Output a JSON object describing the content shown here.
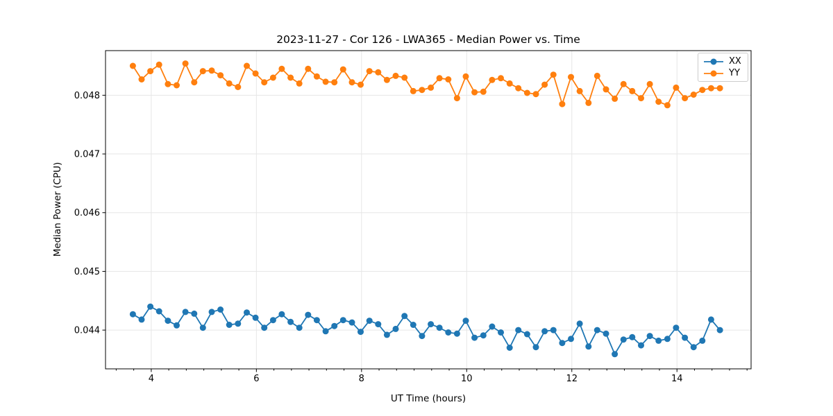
{
  "chart_data": {
    "type": "line",
    "title": "2023-11-27 - Cor 126 - LWA365 - Median Power vs. Time",
    "xlabel": "UT Time (hours)",
    "ylabel": "Median Power (CPU)",
    "xlim": [
      3.13,
      15.41
    ],
    "ylim": [
      0.04334,
      0.04876
    ],
    "xticks": [
      4,
      6,
      8,
      10,
      12,
      14
    ],
    "xtick_labels": [
      "4",
      "6",
      "8",
      "10",
      "12",
      "14"
    ],
    "x_minor_tick_step": 0.33333,
    "yticks": [
      0.044,
      0.045,
      0.046,
      0.047,
      0.048
    ],
    "ytick_labels": [
      "0.044",
      "0.045",
      "0.046",
      "0.047",
      "0.048"
    ],
    "grid": true,
    "grid_color": "#e6e6e6",
    "spine_color": "#000000",
    "text_color": "#000000",
    "legend_position": "upper right",
    "marker": "circle",
    "x": [
      3.65,
      3.817,
      3.983,
      4.15,
      4.317,
      4.483,
      4.65,
      4.817,
      4.983,
      5.15,
      5.317,
      5.483,
      5.65,
      5.817,
      5.983,
      6.15,
      6.317,
      6.483,
      6.65,
      6.817,
      6.983,
      7.15,
      7.317,
      7.483,
      7.65,
      7.817,
      7.983,
      8.15,
      8.317,
      8.483,
      8.65,
      8.817,
      8.983,
      9.15,
      9.317,
      9.483,
      9.65,
      9.817,
      9.983,
      10.15,
      10.317,
      10.483,
      10.65,
      10.817,
      10.983,
      11.15,
      11.317,
      11.483,
      11.65,
      11.817,
      11.983,
      12.15,
      12.317,
      12.483,
      12.65,
      12.817,
      12.983,
      13.15,
      13.317,
      13.483,
      13.65,
      13.817,
      13.983,
      14.15,
      14.317,
      14.483,
      14.65,
      14.817
    ],
    "series": [
      {
        "name": "XX",
        "color": "#1f77b4",
        "values": [
          0.04427,
          0.04418,
          0.0444,
          0.04432,
          0.04416,
          0.04408,
          0.04431,
          0.04428,
          0.04404,
          0.04431,
          0.04435,
          0.04409,
          0.04411,
          0.0443,
          0.04421,
          0.04404,
          0.04417,
          0.04427,
          0.04414,
          0.04404,
          0.04426,
          0.04417,
          0.04398,
          0.04407,
          0.04417,
          0.04413,
          0.04397,
          0.04416,
          0.0441,
          0.04392,
          0.04402,
          0.04424,
          0.04409,
          0.0439,
          0.0441,
          0.04404,
          0.04396,
          0.04394,
          0.04416,
          0.04387,
          0.04391,
          0.04406,
          0.04396,
          0.0437,
          0.044,
          0.04393,
          0.04371,
          0.04398,
          0.044,
          0.04378,
          0.04385,
          0.04411,
          0.04372,
          0.044,
          0.04394,
          0.04359,
          0.04384,
          0.04388,
          0.04374,
          0.0439,
          0.04382,
          0.04385,
          0.04404,
          0.04387,
          0.04371,
          0.04382,
          0.04418,
          0.044
        ]
      },
      {
        "name": "YY",
        "color": "#ff7f0e",
        "values": [
          0.0485,
          0.04827,
          0.04841,
          0.04852,
          0.04819,
          0.04817,
          0.04854,
          0.04822,
          0.04841,
          0.04842,
          0.04834,
          0.0482,
          0.04814,
          0.0485,
          0.04837,
          0.04822,
          0.0483,
          0.04845,
          0.0483,
          0.0482,
          0.04845,
          0.04832,
          0.04823,
          0.04822,
          0.04844,
          0.04822,
          0.04818,
          0.04841,
          0.04839,
          0.04826,
          0.04833,
          0.0483,
          0.04807,
          0.04809,
          0.04813,
          0.04829,
          0.04827,
          0.04795,
          0.04832,
          0.04805,
          0.04806,
          0.04826,
          0.04829,
          0.0482,
          0.04812,
          0.04804,
          0.04802,
          0.04818,
          0.04835,
          0.04785,
          0.04831,
          0.04807,
          0.04787,
          0.04833,
          0.0481,
          0.04794,
          0.04819,
          0.04807,
          0.04795,
          0.04819,
          0.04789,
          0.04783,
          0.04813,
          0.04795,
          0.04801,
          0.04809,
          0.04812,
          0.04812
        ]
      }
    ]
  }
}
